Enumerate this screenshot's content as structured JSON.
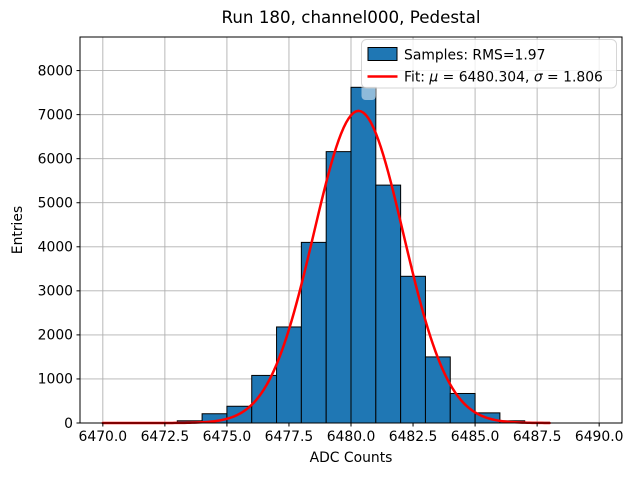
{
  "figure": {
    "background": "#ffffff"
  },
  "chart_data": {
    "type": "histogram",
    "title": "Run 180, channel000, Pedestal",
    "xlabel": "ADC Counts",
    "ylabel": "Entries",
    "xlim": [
      6469.08,
      6490.92
    ],
    "ylim": [
      0,
      8762
    ],
    "grid": true,
    "grid_color": "#b0b0b0",
    "x_tick_values": [
      6470.0,
      6472.5,
      6475.0,
      6477.5,
      6480.0,
      6482.5,
      6485.0,
      6487.5,
      6490.0
    ],
    "x_tick_labels": [
      "6470.0",
      "6472.5",
      "6475.0",
      "6477.5",
      "6480.0",
      "6482.5",
      "6485.0",
      "6487.5",
      "6490.0"
    ],
    "y_tick_values": [
      0,
      1000,
      2000,
      3000,
      4000,
      5000,
      6000,
      7000,
      8000
    ],
    "y_tick_labels": [
      "0",
      "1000",
      "2000",
      "3000",
      "4000",
      "5000",
      "6000",
      "7000",
      "8000"
    ],
    "histogram": {
      "bin_start": 6470,
      "bin_width": 1,
      "counts": [
        0,
        0,
        10,
        50,
        210,
        380,
        1080,
        2180,
        4100,
        6160,
        7620,
        5400,
        3330,
        1500,
        670,
        230,
        50,
        15,
        0,
        0
      ],
      "fill_color": "#1f77b4",
      "edge_color": "#000000",
      "rms": 1.97
    },
    "fit": {
      "mu": 6480.304,
      "sigma": 1.806,
      "peak": 7085,
      "color": "#ff0000",
      "x_start": 6470,
      "x_end": 6488
    },
    "legend": {
      "position": "upper right",
      "entries": [
        {
          "type": "patch",
          "label": "Samples: RMS=1.97",
          "color": "#1f77b4"
        },
        {
          "type": "line",
          "label": "Fit: μ = 6480.304, σ = 1.806",
          "color": "#ff0000"
        }
      ]
    }
  }
}
